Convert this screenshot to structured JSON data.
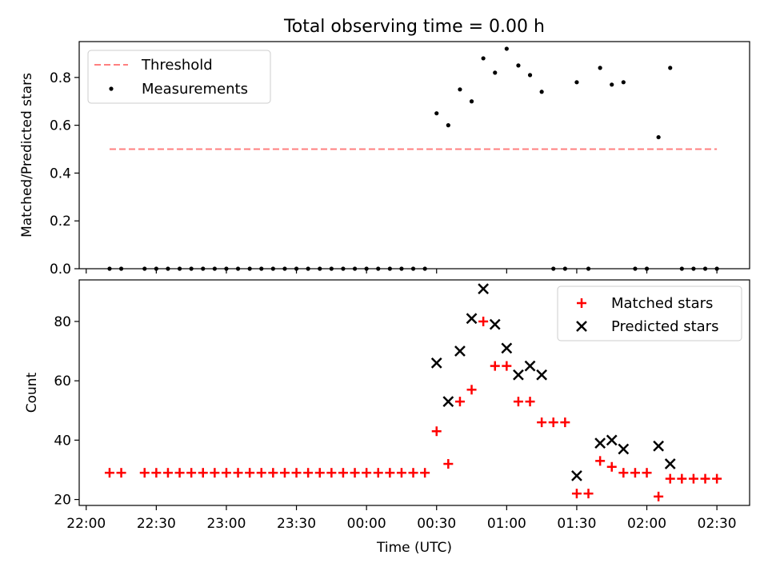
{
  "colors": {
    "threshold": "#ff7f7f",
    "measurement": "#000000",
    "matched": "#ff0000",
    "predicted": "#000000"
  },
  "chart_data": [
    {
      "type": "scatter",
      "title": "Total observing time = 0.00 h",
      "ylabel": "Matched/Predicted stars",
      "xlim": [
        -0.05,
        4.7333
      ],
      "ylim": [
        0,
        0.95
      ],
      "yticks": [
        0.0,
        0.2,
        0.4,
        0.6,
        0.8
      ],
      "ytick_labels": [
        "0.0",
        "0.2",
        "0.4",
        "0.6",
        "0.8"
      ],
      "legend": {
        "placement": "top-left",
        "entries": [
          "Threshold",
          "Measurements"
        ]
      },
      "threshold": {
        "name": "Threshold",
        "y": 0.5,
        "x_range": [
          0.1667,
          4.5
        ],
        "style": "dashed"
      },
      "series": [
        {
          "name": "Measurements",
          "marker": "dot",
          "x": [
            0.1667,
            0.25,
            0.4167,
            0.5,
            0.5833,
            0.6667,
            0.75,
            0.8333,
            0.9167,
            1.0,
            1.0833,
            1.1667,
            1.25,
            1.3333,
            1.4167,
            1.5,
            1.5833,
            1.6667,
            1.75,
            1.8333,
            1.9167,
            2.0,
            2.0833,
            2.1667,
            2.25,
            2.3333,
            2.4167,
            2.5,
            2.5833,
            2.6667,
            2.75,
            2.8333,
            2.9167,
            3.0,
            3.0833,
            3.1667,
            3.25,
            3.3333,
            3.4167,
            3.5,
            3.5833,
            3.6667,
            3.75,
            3.8333,
            3.9167,
            4.0,
            4.0833,
            4.1667,
            4.25,
            4.3333,
            4.4167,
            4.5
          ],
          "y": [
            0,
            0,
            0,
            0,
            0,
            0,
            0,
            0,
            0,
            0,
            0,
            0,
            0,
            0,
            0,
            0,
            0,
            0,
            0,
            0,
            0,
            0,
            0,
            0,
            0,
            0,
            0,
            0.65,
            0.6,
            0.75,
            0.7,
            0.88,
            0.82,
            0.92,
            0.85,
            0.81,
            0.74,
            0,
            0,
            0.78,
            0,
            0.84,
            0.77,
            0.78,
            0,
            0,
            0.55,
            0.84,
            0,
            0,
            0,
            0
          ]
        }
      ]
    },
    {
      "type": "scatter",
      "xlabel": "Time (UTC)",
      "ylabel": "Count",
      "xlim": [
        -0.05,
        4.7333
      ],
      "ylim": [
        18,
        94
      ],
      "xticks": [
        0,
        0.5,
        1,
        1.5,
        2,
        2.5,
        3,
        3.5,
        4,
        4.5
      ],
      "xtick_labels": [
        "22:00",
        "22:30",
        "23:00",
        "23:30",
        "00:00",
        "00:30",
        "01:00",
        "01:30",
        "02:00",
        "02:30"
      ],
      "yticks": [
        20,
        40,
        60,
        80
      ],
      "ytick_labels": [
        "20",
        "40",
        "60",
        "80"
      ],
      "legend": {
        "placement": "top-right",
        "entries": [
          "Matched stars",
          "Predicted stars"
        ]
      },
      "series": [
        {
          "name": "Matched stars",
          "marker": "plus",
          "x": [
            0.1667,
            0.25,
            0.4167,
            0.5,
            0.5833,
            0.6667,
            0.75,
            0.8333,
            0.9167,
            1.0,
            1.0833,
            1.1667,
            1.25,
            1.3333,
            1.4167,
            1.5,
            1.5833,
            1.6667,
            1.75,
            1.8333,
            1.9167,
            2.0,
            2.0833,
            2.1667,
            2.25,
            2.3333,
            2.4167,
            2.5,
            2.5833,
            2.6667,
            2.75,
            2.8333,
            2.9167,
            3.0,
            3.0833,
            3.1667,
            3.25,
            3.3333,
            3.4167,
            3.5,
            3.5833,
            3.6667,
            3.75,
            3.8333,
            3.9167,
            4.0,
            4.0833,
            4.1667,
            4.25,
            4.3333,
            4.4167,
            4.5
          ],
          "y": [
            29,
            29,
            29,
            29,
            29,
            29,
            29,
            29,
            29,
            29,
            29,
            29,
            29,
            29,
            29,
            29,
            29,
            29,
            29,
            29,
            29,
            29,
            29,
            29,
            29,
            29,
            29,
            43,
            32,
            53,
            57,
            80,
            65,
            65,
            53,
            53,
            46,
            46,
            46,
            22,
            22,
            33,
            31,
            29,
            29,
            29,
            21,
            27,
            27,
            27,
            27,
            27
          ]
        },
        {
          "name": "Predicted stars",
          "marker": "x",
          "x": [
            2.5,
            2.5833,
            2.6667,
            2.75,
            2.8333,
            2.9167,
            3.0,
            3.0833,
            3.1667,
            3.25,
            3.5,
            3.6667,
            3.75,
            3.8333,
            4.0833,
            4.1667
          ],
          "y": [
            66,
            53,
            70,
            81,
            91,
            79,
            71,
            62,
            65,
            62,
            28,
            39,
            40,
            37,
            38,
            32
          ]
        }
      ]
    }
  ]
}
